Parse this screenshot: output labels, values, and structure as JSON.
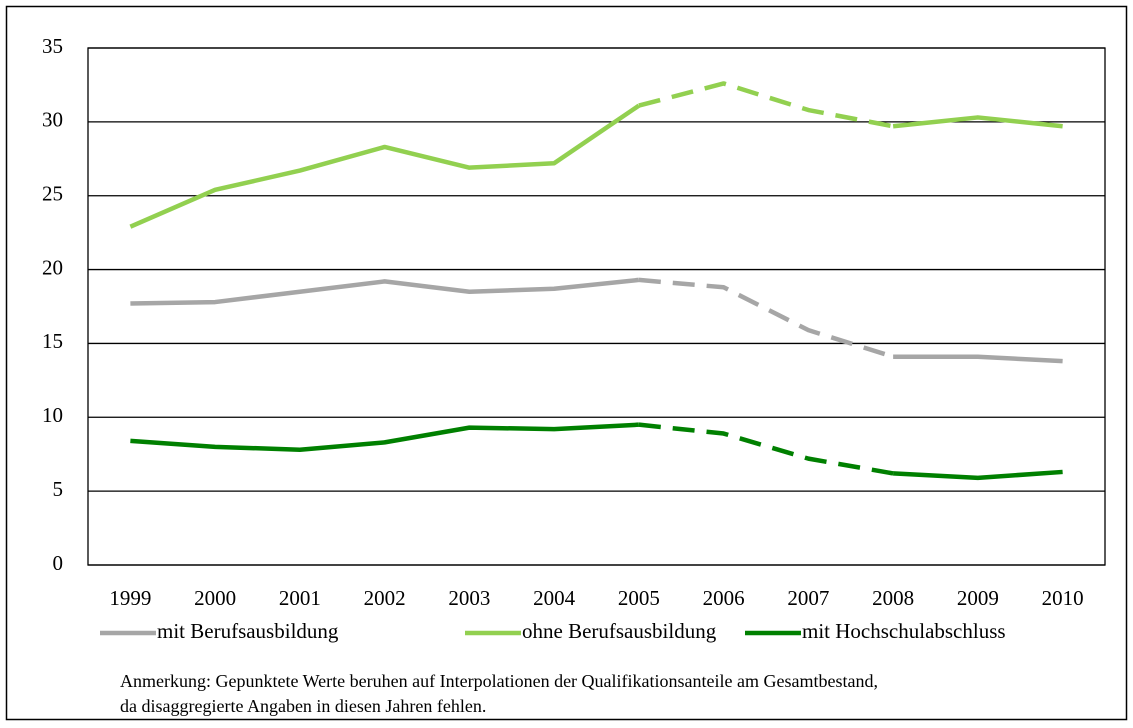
{
  "chart_data": {
    "type": "line",
    "categories": [
      "1999",
      "2000",
      "2001",
      "2002",
      "2003",
      "2004",
      "2005",
      "2006",
      "2007",
      "2008",
      "2009",
      "2010"
    ],
    "series": [
      {
        "name": "mit Berufsausbildung",
        "color": "#a6a6a6",
        "values": [
          17.7,
          17.8,
          18.5,
          19.2,
          18.5,
          18.7,
          19.3,
          18.8,
          15.9,
          14.1,
          14.1,
          13.8
        ]
      },
      {
        "name": "ohne Berufsausbildung",
        "color": "#92d050",
        "values": [
          22.9,
          25.4,
          26.7,
          28.3,
          26.9,
          27.2,
          31.1,
          32.6,
          30.8,
          29.7,
          30.3,
          29.7
        ]
      },
      {
        "name": "mit Hochschulabschluss",
        "color": "#008000",
        "values": [
          8.4,
          8.0,
          7.8,
          8.3,
          9.3,
          9.2,
          9.5,
          8.9,
          7.2,
          6.2,
          5.9,
          6.3
        ]
      }
    ],
    "dashed_segments": [
      [
        6,
        9
      ]
    ],
    "ylim": [
      0,
      35
    ],
    "yticks": [
      0,
      5,
      10,
      15,
      20,
      25,
      30,
      35
    ],
    "grid": true,
    "legend": "bottom",
    "note_lines": [
      "Anmerkung: Gepunktete Werte beruhen auf Interpolationen der Qualifikationsanteile am Gesamtbestand,",
      "da disaggregierte Angaben in diesen Jahren fehlen."
    ]
  }
}
